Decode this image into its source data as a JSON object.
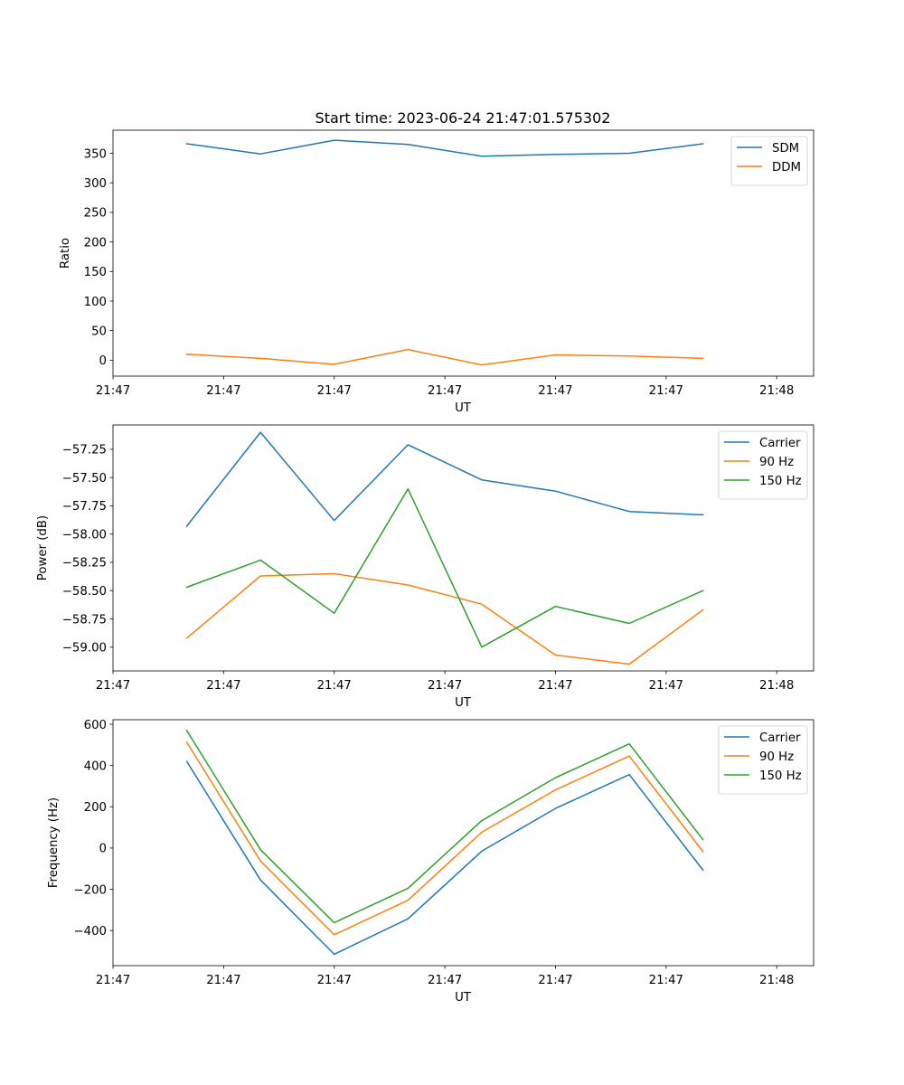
{
  "title": "Start time: 2023-06-24 21:47:01.575302",
  "colors": {
    "blue": "#1f77b4",
    "orange": "#ff7f0e",
    "green": "#2ca02c"
  },
  "chart_data": [
    {
      "type": "line",
      "title": "Start time: 2023-06-24 21:47:01.575302",
      "xlabel": "UT",
      "ylabel": "Ratio",
      "x": [
        1,
        2,
        3,
        4,
        5,
        6,
        7,
        8
      ],
      "xlim": [
        0,
        9.5
      ],
      "xticks": {
        "values": [
          0,
          1.5,
          3,
          4.5,
          6,
          7.5,
          9
        ],
        "labels": [
          "21:47",
          "21:47",
          "21:47",
          "21:47",
          "21:47",
          "21:47",
          "21:48"
        ]
      },
      "ylim": [
        -27,
        389
      ],
      "yticks": {
        "values": [
          0,
          50,
          100,
          150,
          200,
          250,
          300,
          350
        ],
        "labels": [
          "0",
          "50",
          "100",
          "150",
          "200",
          "250",
          "300",
          "350"
        ]
      },
      "legend": "top-right",
      "grid": false,
      "series": [
        {
          "name": "SDM",
          "color": "#1f77b4",
          "values": [
            366,
            349,
            372,
            365,
            345,
            348,
            350,
            366
          ]
        },
        {
          "name": "DDM",
          "color": "#ff7f0e",
          "values": [
            10,
            3,
            -7,
            18,
            -8,
            9,
            7,
            3
          ]
        }
      ]
    },
    {
      "type": "line",
      "title": "",
      "xlabel": "UT",
      "ylabel": "Power (dB)",
      "x": [
        1,
        2,
        3,
        4,
        5,
        6,
        7,
        8
      ],
      "xlim": [
        0,
        9.5
      ],
      "xticks": {
        "values": [
          0,
          1.5,
          3,
          4.5,
          6,
          7.5,
          9
        ],
        "labels": [
          "21:47",
          "21:47",
          "21:47",
          "21:47",
          "21:47",
          "21:47",
          "21:48"
        ]
      },
      "ylim": [
        -59.21,
        -57.035
      ],
      "yticks": {
        "values": [
          -59.0,
          -58.75,
          -58.5,
          -58.25,
          -58.0,
          -57.75,
          -57.5,
          -57.25
        ],
        "labels": [
          "−59.00",
          "−58.75",
          "−58.50",
          "−58.25",
          "−58.00",
          "−57.75",
          "−57.50",
          "−57.25"
        ]
      },
      "legend": "top-right",
      "grid": false,
      "series": [
        {
          "name": "Carrier",
          "color": "#1f77b4",
          "values": [
            -57.93,
            -57.1,
            -57.88,
            -57.21,
            -57.52,
            -57.62,
            -57.8,
            -57.83
          ]
        },
        {
          "name": "90 Hz",
          "color": "#ff7f0e",
          "values": [
            -58.92,
            -58.37,
            -58.35,
            -58.45,
            -58.62,
            -59.07,
            -59.15,
            -58.67
          ]
        },
        {
          "name": "150 Hz",
          "color": "#2ca02c",
          "values": [
            -58.47,
            -58.23,
            -58.7,
            -57.6,
            -59.0,
            -58.64,
            -58.79,
            -58.5
          ]
        }
      ]
    },
    {
      "type": "line",
      "title": "",
      "xlabel": "UT",
      "ylabel": "Frequency (Hz)",
      "x": [
        1,
        2,
        3,
        4,
        5,
        6,
        7,
        8
      ],
      "xlim": [
        0,
        9.5
      ],
      "xticks": {
        "values": [
          0,
          1.5,
          3,
          4.5,
          6,
          7.5,
          9
        ],
        "labels": [
          "21:47",
          "21:47",
          "21:47",
          "21:47",
          "21:47",
          "21:47",
          "21:48"
        ]
      },
      "ylim": [
        -570,
        622
      ],
      "yticks": {
        "values": [
          -400,
          -200,
          0,
          200,
          400,
          600
        ],
        "labels": [
          "−400",
          "−200",
          "0",
          "200",
          "400",
          "600"
        ]
      },
      "legend": "top-right",
      "grid": false,
      "series": [
        {
          "name": "Carrier",
          "color": "#1f77b4",
          "values": [
            420,
            -155,
            -515,
            -343,
            -15,
            192,
            356,
            -107
          ]
        },
        {
          "name": "90 Hz",
          "color": "#ff7f0e",
          "values": [
            513,
            -63,
            -420,
            -253,
            77,
            282,
            446,
            -17
          ]
        },
        {
          "name": "150 Hz",
          "color": "#2ca02c",
          "values": [
            570,
            -8,
            -362,
            -195,
            133,
            341,
            505,
            41
          ]
        }
      ]
    }
  ]
}
